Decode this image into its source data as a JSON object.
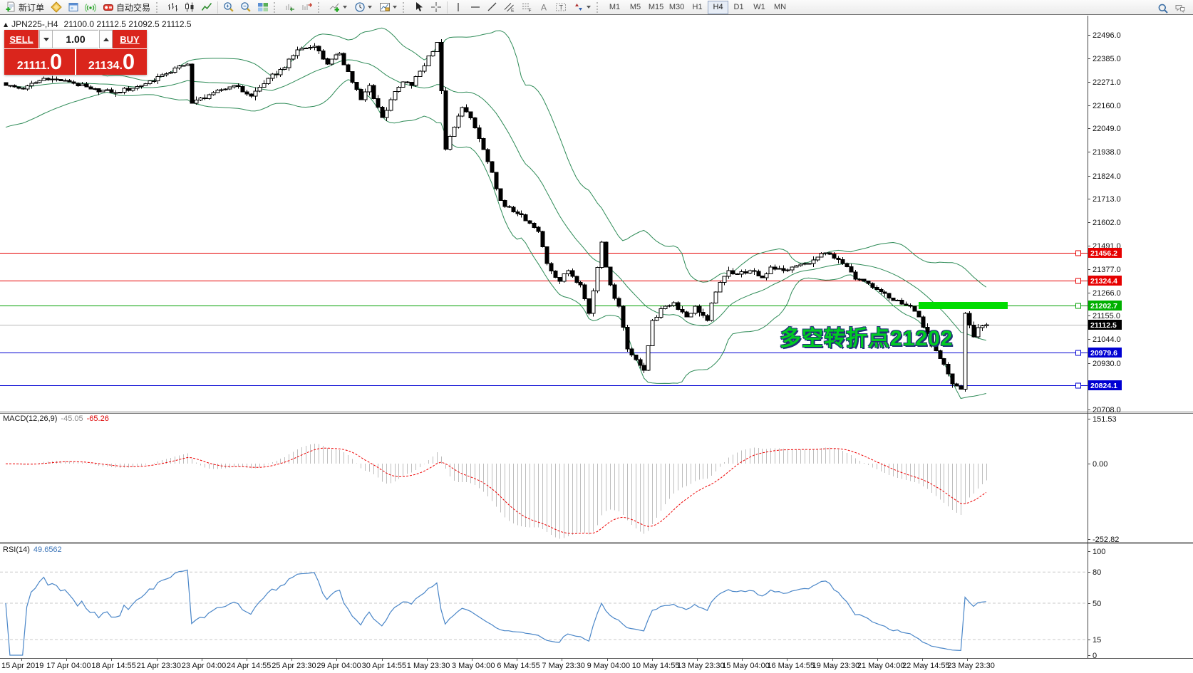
{
  "toolbar": {
    "new_order_label": "新订单",
    "autotrade_label": "自动交易",
    "timeframes": [
      "M1",
      "M5",
      "M15",
      "M30",
      "H1",
      "H4",
      "D1",
      "W1",
      "MN"
    ],
    "active_timeframe": "H4"
  },
  "chart": {
    "symbol_period": "JPN225-,H4",
    "ohlc": "21100.0 21112.5 21092.5 21112.5",
    "collapse_arrow": "▲"
  },
  "trade_panel": {
    "sell_label": "SELL",
    "buy_label": "BUY",
    "volume": "1.00",
    "sell_price": "21111.",
    "sell_price_big": "0",
    "buy_price": "21134.",
    "buy_price_big": "0"
  },
  "annotation": {
    "text": "多空转折点21202"
  },
  "macd": {
    "title": "MACD(12,26,9)",
    "value": "-45.05",
    "signal_value": "-65.26",
    "axis_labels": [
      "151.53",
      "0.00",
      "-252.82"
    ],
    "axis_values": [
      151.53,
      0,
      -252.82
    ]
  },
  "rsi": {
    "title": "RSI(14)",
    "value": "49.6562",
    "axis_labels": [
      "100",
      "80",
      "50",
      "15",
      "0"
    ],
    "axis_values": [
      100,
      80,
      50,
      15,
      0
    ],
    "dashed_levels": [
      80,
      50,
      15
    ]
  },
  "price_axis": {
    "labels": [
      "22496.0",
      "22385.0",
      "22271.0",
      "22160.0",
      "22049.0",
      "21938.0",
      "21824.0",
      "21713.0",
      "21602.0",
      "21491.0",
      "21377.0",
      "21266.0",
      "21155.0",
      "21044.0",
      "20930.0",
      "20708.0"
    ],
    "current": {
      "value": "21112.5",
      "price": 21112.5,
      "bg": "#000000"
    },
    "tags": [
      {
        "value": "21456.2",
        "price": 21456.2,
        "bg": "#e60000"
      },
      {
        "value": "21324.4",
        "price": 21324.4,
        "bg": "#e60000"
      },
      {
        "value": "21202.7",
        "price": 21202.7,
        "bg": "#00b000"
      },
      {
        "value": "20979.6",
        "price": 20979.6,
        "bg": "#0000d2"
      },
      {
        "value": "20824.1",
        "price": 20824.1,
        "bg": "#0000d2"
      }
    ]
  },
  "time_axis": [
    "15 Apr 2019",
    "17 Apr 04:00",
    "18 Apr 14:55",
    "21 Apr 23:30",
    "23 Apr 04:00",
    "24 Apr 14:55",
    "25 Apr 23:30",
    "29 Apr 04:00",
    "30 Apr 14:55",
    "1 May 23:30",
    "3 May 04:00",
    "6 May 14:55",
    "7 May 23:30",
    "9 May 04:00",
    "10 May 14:55",
    "13 May 23:30",
    "15 May 04:00",
    "16 May 14:55",
    "19 May 23:30",
    "21 May 04:00",
    "22 May 14:55",
    "23 May 23:30"
  ],
  "colors": {
    "candle_bull": "#ffffff",
    "candle_bear": "#000000",
    "candle_outline": "#000000",
    "bollinger": "#2e8b57",
    "current_price_line": "#b8b8b8",
    "macd_hist": "#bdbdbd",
    "macd_signal": "#ee0000",
    "rsi_line": "#4a86c8",
    "rsi_levels": "#c9c9c9",
    "trend_bar": "#00dc00",
    "annotation_green": "#00cc22",
    "panel_red": "#da251c"
  },
  "chart_data": {
    "type": "candlestick",
    "symbol": "JPN225-",
    "timeframe": "H4",
    "bar_count": 233,
    "price_range": [
      20708.0,
      22496.0
    ],
    "last_close": 21112.5,
    "anchors": [
      [
        0,
        22255
      ],
      [
        4,
        22238
      ],
      [
        9,
        22289
      ],
      [
        15,
        22272
      ],
      [
        20,
        22238
      ],
      [
        26,
        22221
      ],
      [
        32,
        22255
      ],
      [
        37,
        22306
      ],
      [
        43,
        22357
      ],
      [
        44,
        22170
      ],
      [
        49,
        22221
      ],
      [
        54,
        22255
      ],
      [
        58,
        22204
      ],
      [
        62,
        22289
      ],
      [
        66,
        22340
      ],
      [
        69,
        22425
      ],
      [
        73,
        22442
      ],
      [
        76,
        22357
      ],
      [
        79,
        22408
      ],
      [
        84,
        22187
      ],
      [
        86,
        22255
      ],
      [
        89,
        22102
      ],
      [
        91,
        22187
      ],
      [
        94,
        22272
      ],
      [
        96,
        22255
      ],
      [
        102,
        22460
      ],
      [
        104,
        21950
      ],
      [
        108,
        22150
      ],
      [
        110,
        22100
      ],
      [
        113,
        21949
      ],
      [
        116,
        21762
      ],
      [
        118,
        21677
      ],
      [
        121,
        21643
      ],
      [
        123,
        21609
      ],
      [
        126,
        21558
      ],
      [
        128,
        21405
      ],
      [
        131,
        21320
      ],
      [
        133,
        21371
      ],
      [
        136,
        21303
      ],
      [
        138,
        21167
      ],
      [
        141,
        21507
      ],
      [
        143,
        21303
      ],
      [
        145,
        21201
      ],
      [
        147,
        20997
      ],
      [
        149,
        20946
      ],
      [
        151,
        20895
      ],
      [
        153,
        21133
      ],
      [
        156,
        21201
      ],
      [
        158,
        21218
      ],
      [
        161,
        21150
      ],
      [
        163,
        21201
      ],
      [
        166,
        21133
      ],
      [
        168,
        21269
      ],
      [
        171,
        21371
      ],
      [
        173,
        21354
      ],
      [
        176,
        21371
      ],
      [
        179,
        21337
      ],
      [
        181,
        21388
      ],
      [
        184,
        21371
      ],
      [
        186,
        21388
      ],
      [
        189,
        21405
      ],
      [
        191,
        21422
      ],
      [
        194,
        21456
      ],
      [
        196,
        21430
      ],
      [
        199,
        21390
      ],
      [
        201,
        21330
      ],
      [
        204,
        21310
      ],
      [
        206,
        21280
      ],
      [
        209,
        21240
      ],
      [
        211,
        21230
      ],
      [
        214,
        21200
      ],
      [
        216,
        21150
      ],
      [
        219,
        21010
      ],
      [
        221,
        20950
      ],
      [
        224,
        20830
      ],
      [
        226,
        20805
      ],
      [
        227,
        21167
      ],
      [
        229,
        21055
      ],
      [
        230,
        21099
      ],
      [
        232,
        21112.5
      ]
    ],
    "indicators": {
      "bollinger": {
        "period": 20,
        "deviation": 2
      },
      "macd": {
        "fast": 12,
        "slow": 26,
        "signal": 9,
        "last_main": -45.05,
        "last_signal": -65.26
      },
      "rsi": {
        "period": 14,
        "last": 49.6562
      }
    },
    "hlines": [
      {
        "price": 21456.2,
        "color": "#e60000",
        "name": "resistance-line-21456"
      },
      {
        "price": 21324.4,
        "color": "#e60000",
        "name": "resistance-line-21324"
      },
      {
        "price": 21202.7,
        "color": "#00a000",
        "name": "pivot-line-21202"
      },
      {
        "price": 20979.6,
        "color": "#0000d2",
        "name": "support-line-20979"
      },
      {
        "price": 20824.1,
        "color": "#0000d2",
        "name": "support-line-20824"
      }
    ],
    "trend_segment": {
      "price": 21202.7,
      "from_bar": 216,
      "to_bar": 237,
      "thickness": 10
    }
  }
}
